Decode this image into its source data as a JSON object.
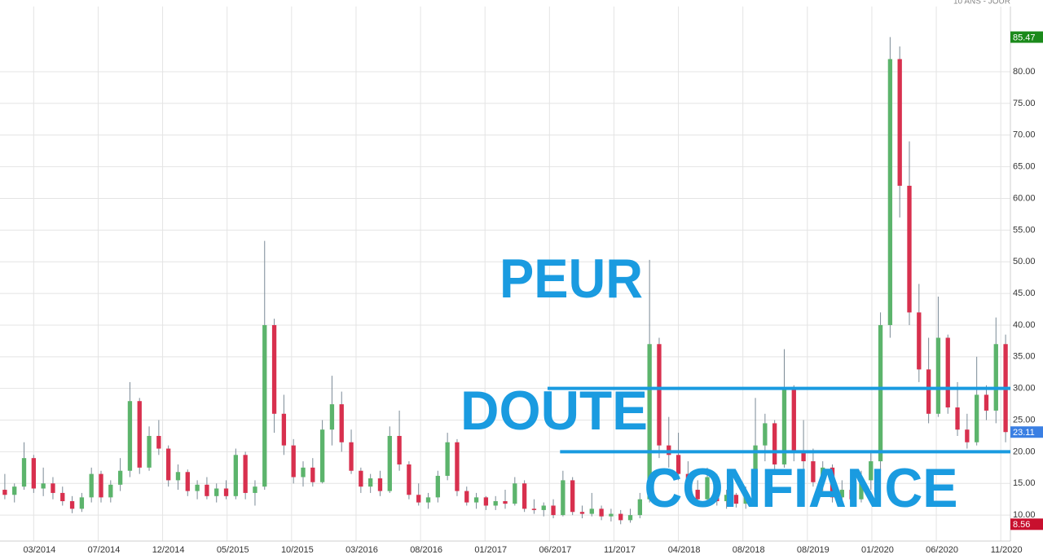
{
  "chart_data": {
    "type": "candlestick",
    "corner_label": "10 ANS - JOUR",
    "x": [
      0.5,
      1.5,
      2.5,
      3.5,
      4.5,
      5.5,
      6.5,
      7.5,
      8.5,
      9.5,
      10.5,
      11.5,
      12.5,
      13.5,
      14.5,
      15.5,
      16.5,
      17.5,
      18.5,
      19.5,
      20.5,
      21.5,
      22.5,
      23.5,
      24.5,
      25.5,
      26.5,
      27.5,
      28.5,
      29.5,
      30.5,
      31.5,
      32.5,
      33.5,
      34.5,
      35.5,
      36.5,
      37.5,
      38.5,
      39.5,
      40.5,
      41.5,
      42.5,
      43.5,
      44.5,
      45.5,
      46.5,
      47.5,
      48.5,
      49.5,
      50.5,
      51.5,
      52.5,
      53.5,
      54.5,
      55.5,
      56.5,
      57.5,
      58.5,
      59.5,
      60.5,
      61.5,
      62.5,
      63.5,
      64.5,
      65.5,
      66.5,
      67.5,
      68.5,
      69.5,
      70.5,
      71.5,
      72.5,
      73.5,
      74.5,
      75.5,
      76.5,
      77.5,
      78.5,
      79.5,
      80.5,
      81.5,
      82.5,
      83.5,
      84.5,
      85.5,
      86.5,
      87.5,
      88.5,
      89.5,
      90.5,
      91.5,
      92.5,
      93.5,
      94.5,
      95.5,
      96.5,
      97.5,
      98.5,
      99.5,
      100.5,
      101.5,
      102.5,
      103.5,
      104.5
    ],
    "open": [
      14.0,
      13.2,
      14.5,
      19.0,
      14.2,
      15.0,
      13.5,
      12.2,
      11.0,
      12.8,
      16.5,
      12.8,
      14.8,
      17.0,
      28.0,
      17.5,
      22.5,
      20.5,
      15.5,
      16.8,
      13.8,
      14.8,
      13.0,
      14.2,
      13.0,
      19.5,
      13.5,
      14.5,
      40.0,
      26.0,
      21.0,
      16.0,
      17.5,
      15.2,
      23.5,
      27.5,
      21.5,
      17.0,
      14.5,
      15.8,
      13.8,
      22.5,
      18.0,
      13.2,
      12.0,
      12.8,
      16.2,
      21.5,
      13.8,
      12.0,
      12.8,
      11.5,
      12.2,
      11.8,
      15.0,
      11.0,
      10.8,
      11.5,
      10.0,
      15.5,
      10.5,
      10.2,
      11.0,
      9.8,
      10.2,
      9.2,
      10.0,
      12.5,
      37.0,
      21.0,
      19.5,
      16.5,
      14.0,
      12.5,
      16.0,
      12.2,
      13.2,
      11.8,
      13.5,
      21.0,
      24.5,
      18.0,
      30.0,
      20.0,
      18.5,
      15.2,
      17.5,
      12.8,
      14.0,
      12.5,
      15.5,
      18.5,
      40.0,
      82.0,
      62.0,
      42.0,
      33.0,
      26.0,
      38.0,
      27.0,
      23.5,
      21.5,
      29.0,
      26.5,
      37.0
    ],
    "high": [
      16.5,
      15.0,
      21.5,
      19.5,
      17.5,
      16.0,
      14.5,
      13.0,
      13.5,
      17.5,
      17.0,
      15.5,
      19.0,
      31.0,
      28.5,
      24.0,
      25.0,
      21.0,
      18.0,
      17.2,
      15.5,
      16.0,
      15.0,
      15.5,
      20.5,
      20.0,
      15.5,
      53.3,
      41.0,
      29.0,
      22.0,
      18.5,
      19.0,
      25.0,
      32.0,
      29.5,
      23.5,
      17.5,
      16.5,
      17.0,
      24.0,
      26.5,
      18.5,
      15.0,
      13.5,
      17.0,
      23.0,
      22.0,
      14.5,
      13.5,
      13.0,
      13.0,
      14.0,
      16.0,
      15.5,
      12.5,
      12.0,
      12.5,
      17.0,
      16.0,
      11.5,
      13.5,
      11.5,
      11.0,
      10.8,
      11.0,
      13.5,
      50.3,
      38.0,
      25.5,
      23.0,
      18.5,
      15.5,
      17.5,
      16.5,
      14.0,
      13.5,
      14.5,
      28.5,
      26.0,
      25.0,
      36.2,
      30.5,
      25.0,
      20.5,
      18.5,
      18.0,
      15.5,
      14.5,
      17.0,
      20.0,
      42.0,
      85.47,
      84.0,
      69.0,
      46.5,
      38.0,
      44.5,
      38.5,
      31.0,
      26.0,
      35.0,
      30.5,
      41.2,
      38.5
    ],
    "low": [
      12.5,
      12.0,
      14.0,
      13.5,
      13.0,
      12.5,
      11.5,
      10.3,
      10.5,
      12.0,
      12.0,
      12.0,
      13.8,
      16.0,
      16.5,
      17.0,
      19.5,
      14.5,
      14.0,
      13.0,
      12.5,
      12.5,
      12.0,
      12.5,
      12.5,
      12.5,
      11.5,
      14.0,
      23.0,
      19.5,
      15.0,
      14.5,
      14.5,
      15.0,
      21.0,
      20.0,
      16.5,
      13.5,
      13.5,
      13.0,
      13.5,
      17.0,
      12.5,
      11.5,
      11.0,
      12.0,
      15.5,
      13.0,
      11.5,
      11.0,
      10.8,
      10.8,
      11.0,
      11.5,
      10.5,
      10.2,
      9.8,
      9.5,
      9.8,
      10.0,
      9.5,
      9.8,
      9.2,
      9.0,
      8.56,
      8.8,
      9.5,
      12.0,
      19.0,
      17.5,
      15.5,
      13.0,
      11.5,
      12.0,
      11.5,
      11.0,
      11.2,
      11.0,
      13.0,
      18.5,
      16.5,
      17.5,
      18.5,
      17.0,
      14.5,
      13.0,
      12.0,
      11.5,
      12.0,
      12.0,
      14.0,
      17.0,
      38.0,
      57.0,
      40.0,
      31.0,
      24.5,
      25.5,
      26.0,
      22.5,
      20.5,
      21.0,
      25.0,
      24.5,
      21.5
    ],
    "close": [
      13.2,
      14.5,
      19.0,
      14.2,
      15.0,
      13.5,
      12.2,
      11.0,
      12.8,
      16.5,
      12.8,
      14.8,
      17.0,
      28.0,
      17.5,
      22.5,
      20.5,
      15.5,
      16.8,
      13.8,
      14.8,
      13.0,
      14.2,
      13.0,
      19.5,
      13.5,
      14.5,
      40.0,
      26.0,
      21.0,
      16.0,
      17.5,
      15.2,
      23.5,
      27.5,
      21.5,
      17.0,
      14.5,
      15.8,
      13.8,
      22.5,
      18.0,
      13.2,
      12.0,
      12.8,
      16.2,
      21.5,
      13.8,
      12.0,
      12.8,
      11.5,
      12.2,
      11.8,
      15.0,
      11.0,
      10.8,
      11.5,
      10.0,
      15.5,
      10.5,
      10.2,
      11.0,
      9.8,
      10.2,
      9.2,
      10.0,
      12.5,
      37.0,
      21.0,
      19.5,
      16.5,
      14.0,
      12.5,
      16.0,
      12.2,
      13.2,
      11.8,
      13.5,
      21.0,
      24.5,
      18.0,
      30.0,
      20.0,
      18.5,
      15.2,
      17.5,
      12.8,
      14.0,
      12.5,
      15.5,
      18.5,
      40.0,
      82.0,
      62.0,
      42.0,
      33.0,
      26.0,
      38.0,
      27.0,
      23.5,
      21.5,
      29.0,
      26.5,
      37.0,
      23.11
    ],
    "up_color": "#5cb46c",
    "down_color": "#d8304e",
    "wick_color": "#7a8a96",
    "xlim": [
      0,
      105
    ],
    "ylim": [
      5.9,
      90.3
    ],
    "xticks": [
      {
        "value": 3.5,
        "label": "03/2014"
      },
      {
        "value": 10.2,
        "label": "07/2014"
      },
      {
        "value": 16.9,
        "label": "12/2014"
      },
      {
        "value": 23.6,
        "label": "05/2015"
      },
      {
        "value": 30.3,
        "label": "10/2015"
      },
      {
        "value": 37.0,
        "label": "03/2016"
      },
      {
        "value": 43.7,
        "label": "08/2016"
      },
      {
        "value": 50.4,
        "label": "01/2017"
      },
      {
        "value": 57.1,
        "label": "06/2017"
      },
      {
        "value": 63.8,
        "label": "11/2017"
      },
      {
        "value": 70.5,
        "label": "04/2018"
      },
      {
        "value": 77.2,
        "label": "08/2018"
      },
      {
        "value": 83.9,
        "label": "08/2019"
      },
      {
        "value": 90.6,
        "label": "01/2020"
      },
      {
        "value": 97.3,
        "label": "06/2020"
      },
      {
        "value": 104.0,
        "label": "11/2020"
      }
    ],
    "yticks": [
      {
        "value": 10,
        "label": "10.00"
      },
      {
        "value": 15,
        "label": "15.00"
      },
      {
        "value": 20,
        "label": "20.00"
      },
      {
        "value": 25,
        "label": "25.00"
      },
      {
        "value": 30,
        "label": "30.00"
      },
      {
        "value": 35,
        "label": "35.00"
      },
      {
        "value": 40,
        "label": "40.00"
      },
      {
        "value": 45,
        "label": "45.00"
      },
      {
        "value": 50,
        "label": "50.00"
      },
      {
        "value": 55,
        "label": "55.00"
      },
      {
        "value": 60,
        "label": "60.00"
      },
      {
        "value": 65,
        "label": "65.00"
      },
      {
        "value": 70,
        "label": "70.00"
      },
      {
        "value": 75,
        "label": "75.00"
      },
      {
        "value": 80,
        "label": "80.00"
      }
    ],
    "grid": true,
    "badges": [
      {
        "value": 85.47,
        "color": "#1b8a1b"
      },
      {
        "value": 23.11,
        "color": "#3a7fe3"
      },
      {
        "value": 8.56,
        "color": "#c8102e"
      }
    ],
    "level_lines": [
      {
        "y": 30,
        "x": [
          56.9,
          105
        ]
      },
      {
        "y": 20,
        "x": [
          58.2,
          105
        ]
      }
    ],
    "level_color": "#1a9be0",
    "annotations": [
      "PEUR",
      "DOUTE",
      "CONFIANCE"
    ]
  }
}
